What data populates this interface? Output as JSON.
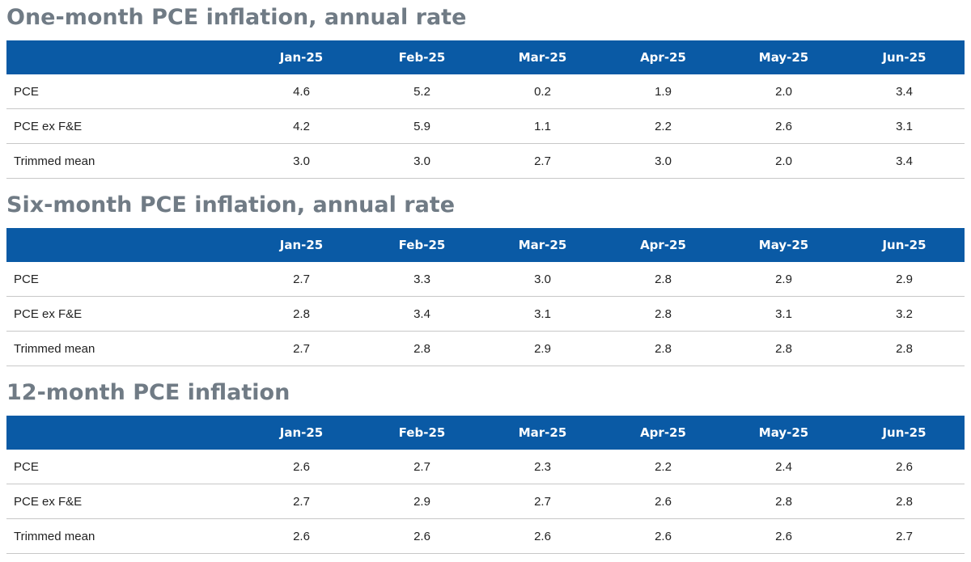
{
  "columns": [
    "Jan-25",
    "Feb-25",
    "Mar-25",
    "Apr-25",
    "May-25",
    "Jun-25"
  ],
  "sections": [
    {
      "title": "One-month PCE inflation, annual rate",
      "rows": [
        {
          "label": "PCE",
          "values": [
            "4.6",
            "5.2",
            "0.2",
            "1.9",
            "2.0",
            "3.4"
          ]
        },
        {
          "label": "PCE ex F&E",
          "values": [
            "4.2",
            "5.9",
            "1.1",
            "2.2",
            "2.6",
            "3.1"
          ]
        },
        {
          "label": "Trimmed mean",
          "values": [
            "3.0",
            "3.0",
            "2.7",
            "3.0",
            "2.0",
            "3.4"
          ]
        }
      ]
    },
    {
      "title": "Six-month PCE inflation, annual rate",
      "rows": [
        {
          "label": "PCE",
          "values": [
            "2.7",
            "3.3",
            "3.0",
            "2.8",
            "2.9",
            "2.9"
          ]
        },
        {
          "label": "PCE ex F&E",
          "values": [
            "2.8",
            "3.4",
            "3.1",
            "2.8",
            "3.1",
            "3.2"
          ]
        },
        {
          "label": "Trimmed mean",
          "values": [
            "2.7",
            "2.8",
            "2.9",
            "2.8",
            "2.8",
            "2.8"
          ]
        }
      ]
    },
    {
      "title": "12-month PCE inflation",
      "rows": [
        {
          "label": "PCE",
          "values": [
            "2.6",
            "2.7",
            "2.3",
            "2.2",
            "2.4",
            "2.6"
          ]
        },
        {
          "label": "PCE ex F&E",
          "values": [
            "2.7",
            "2.9",
            "2.7",
            "2.6",
            "2.8",
            "2.8"
          ]
        },
        {
          "label": "Trimmed mean",
          "values": [
            "2.6",
            "2.6",
            "2.6",
            "2.6",
            "2.6",
            "2.7"
          ]
        }
      ]
    }
  ],
  "colors": {
    "header_bg": "#0a5aa5",
    "header_text": "#ffffff",
    "title_text": "#707b85",
    "row_divider": "#c8c8c8"
  }
}
